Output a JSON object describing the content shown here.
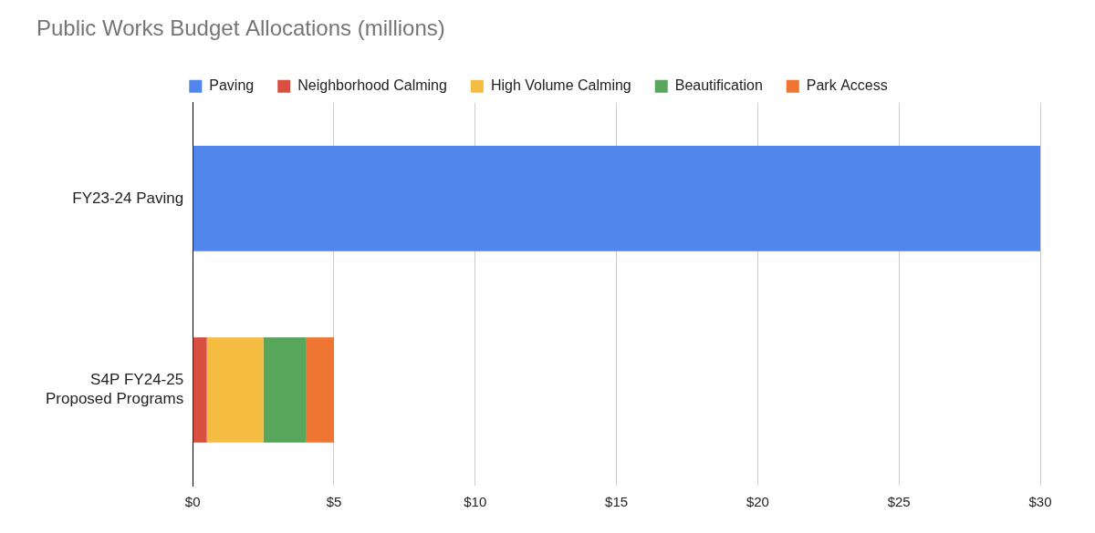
{
  "chart_data": {
    "type": "bar",
    "title": "Public Works Budget Allocations (millions)",
    "orientation": "horizontal",
    "stacked": true,
    "categories": [
      "FY23-24 Paving",
      "S4P FY24-25 Proposed Programs"
    ],
    "series": [
      {
        "name": "Paving",
        "color": "#5187ec",
        "values": [
          30,
          null
        ]
      },
      {
        "name": "Neighborhood Calming",
        "color": "#d95040",
        "values": [
          null,
          0.5
        ]
      },
      {
        "name": "High Volume Calming",
        "color": "#f4bd42",
        "values": [
          null,
          2.0
        ]
      },
      {
        "name": "Beautification",
        "color": "#58a55c",
        "values": [
          null,
          1.5
        ]
      },
      {
        "name": "Park Access",
        "color": "#ef7632",
        "values": [
          null,
          1.0
        ]
      }
    ],
    "xlim": [
      0,
      30
    ],
    "xticks": [
      {
        "value": 0,
        "label": "$0"
      },
      {
        "value": 5,
        "label": "$5"
      },
      {
        "value": 10,
        "label": "$10"
      },
      {
        "value": 15,
        "label": "$15"
      },
      {
        "value": 20,
        "label": "$20"
      },
      {
        "value": 25,
        "label": "$25"
      },
      {
        "value": 30,
        "label": "$30"
      }
    ],
    "grid": true,
    "legend": "top"
  }
}
